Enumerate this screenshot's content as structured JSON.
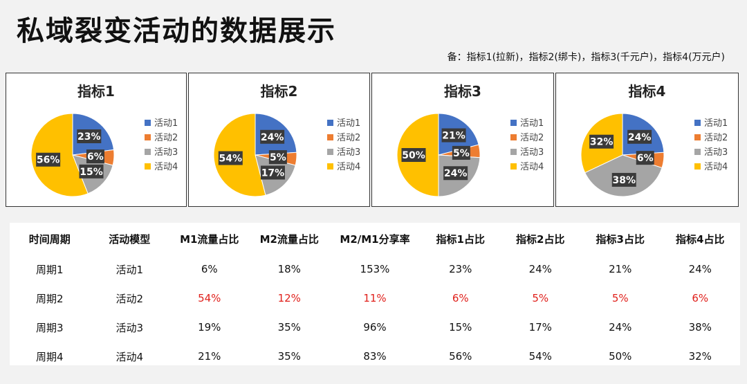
{
  "page": {
    "title": "私域裂变活动的数据展示",
    "note": "备：指标1(拉新)，指标2(绑卡)，指标3(千元户)，指标4(万元户)"
  },
  "colors": {
    "series": [
      "#4472C4",
      "#ED7D31",
      "#A5A5A5",
      "#FFC000"
    ],
    "highlight": "#e0201b"
  },
  "chart_data": [
    {
      "type": "pie",
      "title": "指标1",
      "categories": [
        "活动1",
        "活动2",
        "活动3",
        "活动4"
      ],
      "values": [
        23,
        6,
        15,
        56
      ],
      "labels": [
        "23%",
        "6%",
        "15%",
        "56%"
      ],
      "legend_position": "right"
    },
    {
      "type": "pie",
      "title": "指标2",
      "categories": [
        "活动1",
        "活动2",
        "活动3",
        "活动4"
      ],
      "values": [
        24,
        5,
        17,
        54
      ],
      "labels": [
        "24%",
        "5%",
        "17%",
        "54%"
      ],
      "legend_position": "right"
    },
    {
      "type": "pie",
      "title": "指标3",
      "categories": [
        "活动1",
        "活动2",
        "活动3",
        "活动4"
      ],
      "values": [
        21,
        5,
        24,
        50
      ],
      "labels": [
        "21%",
        "5%",
        "24%",
        "50%"
      ],
      "legend_position": "right"
    },
    {
      "type": "pie",
      "title": "指标4",
      "categories": [
        "活动1",
        "活动2",
        "活动3",
        "活动4"
      ],
      "values": [
        24,
        6,
        38,
        32
      ],
      "labels": [
        "24%",
        "6%",
        "38%",
        "32%"
      ],
      "legend_position": "right"
    }
  ],
  "table": {
    "headers": [
      "时间周期",
      "活动模型",
      "M1流量占比",
      "M2流量占比",
      "M2/M1分享率",
      "指标1占比",
      "指标2占比",
      "指标3占比",
      "指标4占比"
    ],
    "rows": [
      [
        "周期1",
        "活动1",
        "6%",
        "18%",
        "153%",
        "23%",
        "24%",
        "21%",
        "24%"
      ],
      [
        "周期2",
        "活动2",
        "54%",
        "12%",
        "11%",
        "6%",
        "5%",
        "5%",
        "6%"
      ],
      [
        "周期3",
        "活动3",
        "19%",
        "35%",
        "96%",
        "15%",
        "17%",
        "24%",
        "38%"
      ],
      [
        "周期4",
        "活动4",
        "21%",
        "35%",
        "83%",
        "56%",
        "54%",
        "50%",
        "32%"
      ]
    ],
    "highlight_row": 1
  }
}
